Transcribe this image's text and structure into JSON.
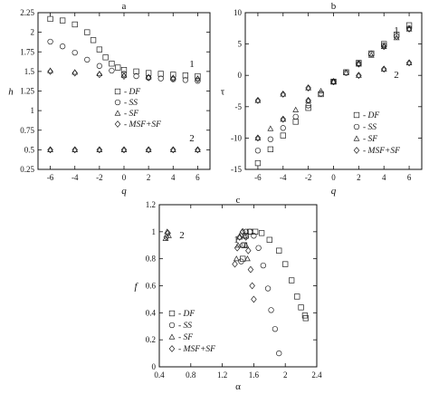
{
  "chart_data": [
    {
      "type": "scatter",
      "panel_title": "a",
      "xlabel": "q",
      "ylabel": "h",
      "xlim": [
        -7,
        7
      ],
      "ylim": [
        0.25,
        2.25
      ],
      "xticks": [
        "-6",
        "-4",
        "-2",
        "0",
        "2",
        "4",
        "6"
      ],
      "yticks": [
        "0.25",
        "0.5",
        "0.75",
        "1",
        "1.25",
        "1.5",
        "1.75",
        "2",
        "2.25"
      ],
      "series": [
        {
          "name": "- DF",
          "marker": "square",
          "points": [
            [
              -6,
              2.17
            ],
            [
              -5,
              2.15
            ],
            [
              -4,
              2.1
            ],
            [
              -3,
              2.0
            ],
            [
              -2.5,
              1.9
            ],
            [
              -2,
              1.78
            ],
            [
              -1.5,
              1.68
            ],
            [
              -1,
              1.6
            ],
            [
              -0.5,
              1.55
            ],
            [
              0,
              1.52
            ],
            [
              1,
              1.5
            ],
            [
              2,
              1.48
            ],
            [
              3,
              1.47
            ],
            [
              4,
              1.46
            ],
            [
              5,
              1.45
            ],
            [
              6,
              1.44
            ]
          ]
        },
        {
          "name": "- SS",
          "marker": "circle",
          "points": [
            [
              -6,
              1.88
            ],
            [
              -5,
              1.82
            ],
            [
              -4,
              1.74
            ],
            [
              -3,
              1.65
            ],
            [
              -2,
              1.57
            ],
            [
              -1,
              1.51
            ],
            [
              0,
              1.47
            ],
            [
              1,
              1.44
            ],
            [
              2,
              1.42
            ],
            [
              3,
              1.41
            ],
            [
              4,
              1.4
            ],
            [
              5,
              1.39
            ],
            [
              6,
              1.38
            ]
          ]
        },
        {
          "name": "- SF",
          "marker": "triangle",
          "points": [
            [
              -6,
              1.51
            ],
            [
              -4,
              1.49
            ],
            [
              -2,
              1.47
            ],
            [
              0,
              1.45
            ],
            [
              2,
              1.43
            ],
            [
              4,
              1.42
            ],
            [
              6,
              1.41
            ],
            [
              -6,
              0.5
            ],
            [
              -4,
              0.5
            ],
            [
              -2,
              0.5
            ],
            [
              0,
              0.5
            ],
            [
              2,
              0.5
            ],
            [
              4,
              0.5
            ],
            [
              6,
              0.5
            ]
          ]
        },
        {
          "name": "- MSF+SF",
          "marker": "diamond",
          "points": [
            [
              -6,
              1.5
            ],
            [
              -4,
              1.48
            ],
            [
              -2,
              1.46
            ],
            [
              0,
              1.44
            ],
            [
              2,
              1.42
            ],
            [
              4,
              1.41
            ],
            [
              6,
              1.4
            ],
            [
              -6,
              0.5
            ],
            [
              -4,
              0.5
            ],
            [
              -2,
              0.5
            ],
            [
              0,
              0.5
            ],
            [
              2,
              0.5
            ],
            [
              4,
              0.5
            ],
            [
              6,
              0.5
            ]
          ]
        }
      ],
      "annotations": [
        "1",
        "2"
      ],
      "legend": "lower-right"
    },
    {
      "type": "scatter",
      "panel_title": "b",
      "xlabel": "q",
      "ylabel": "τ",
      "xlim": [
        -7,
        7
      ],
      "ylim": [
        -15,
        10
      ],
      "xticks": [
        "-6",
        "-4",
        "-2",
        "0",
        "2",
        "4",
        "6"
      ],
      "yticks": [
        "-15",
        "-10",
        "-5",
        "0",
        "5",
        "10"
      ],
      "series": [
        {
          "name": "- DF",
          "marker": "square",
          "points": [
            [
              -6,
              -14
            ],
            [
              -5,
              -11.8
            ],
            [
              -4,
              -9.6
            ],
            [
              -3,
              -7.4
            ],
            [
              -2,
              -5.2
            ],
            [
              -1,
              -3.0
            ],
            [
              0,
              -1.0
            ],
            [
              1,
              0.5
            ],
            [
              2,
              2.0
            ],
            [
              3,
              3.5
            ],
            [
              4,
              5.0
            ],
            [
              5,
              6.5
            ],
            [
              6,
              8.0
            ]
          ]
        },
        {
          "name": "- SS",
          "marker": "circle",
          "points": [
            [
              -6,
              -12
            ],
            [
              -5,
              -10.2
            ],
            [
              -4,
              -8.4
            ],
            [
              -3,
              -6.6
            ],
            [
              -2,
              -4.8
            ],
            [
              -1,
              -2.9
            ],
            [
              0,
              -1.0
            ],
            [
              1,
              0.4
            ],
            [
              2,
              1.9
            ],
            [
              3,
              3.4
            ],
            [
              4,
              4.8
            ],
            [
              5,
              6.2
            ],
            [
              6,
              7.5
            ]
          ]
        },
        {
          "name": "- SF",
          "marker": "triangle",
          "points": [
            [
              -6,
              -10
            ],
            [
              -5,
              -8.5
            ],
            [
              -4,
              -7.0
            ],
            [
              -3,
              -5.5
            ],
            [
              -2,
              -4.0
            ],
            [
              -1,
              -2.5
            ],
            [
              0,
              -1.0
            ],
            [
              1,
              0.4
            ],
            [
              2,
              1.8
            ],
            [
              3,
              3.2
            ],
            [
              4,
              4.6
            ],
            [
              5,
              6.0
            ],
            [
              6,
              7.4
            ],
            [
              -6,
              -4
            ],
            [
              -4,
              -3
            ],
            [
              -2,
              -2
            ],
            [
              0,
              -1
            ],
            [
              2,
              0
            ],
            [
              4,
              1
            ],
            [
              6,
              2
            ]
          ]
        },
        {
          "name": "- MSF+SF",
          "marker": "diamond",
          "points": [
            [
              -6,
              -10
            ],
            [
              -4,
              -7
            ],
            [
              -2,
              -4
            ],
            [
              0,
              -1
            ],
            [
              2,
              1.8
            ],
            [
              4,
              4.6
            ],
            [
              6,
              7.4
            ],
            [
              -6,
              -4
            ],
            [
              -4,
              -3
            ],
            [
              -2,
              -2
            ],
            [
              0,
              -1
            ],
            [
              2,
              0
            ],
            [
              4,
              1
            ],
            [
              6,
              2
            ]
          ]
        }
      ],
      "annotations": [
        "1",
        "2"
      ],
      "legend": "lower-right"
    },
    {
      "type": "scatter",
      "panel_title": "c",
      "xlabel": "α",
      "ylabel": "f",
      "xlim": [
        0.4,
        2.4
      ],
      "ylim": [
        0,
        1.2
      ],
      "xticks": [
        "0.4",
        "0.8",
        "1.2",
        "1.6",
        "2",
        "2.4"
      ],
      "yticks": [
        "0",
        "0.2",
        "0.4",
        "0.6",
        "0.8",
        "1",
        "1.2"
      ],
      "series": [
        {
          "name": "- DF",
          "marker": "square",
          "points": [
            [
              1.46,
              0.8
            ],
            [
              1.48,
              0.9
            ],
            [
              1.5,
              0.97
            ],
            [
              1.55,
              1.0
            ],
            [
              1.62,
              1.0
            ],
            [
              1.7,
              0.99
            ],
            [
              1.8,
              0.94
            ],
            [
              1.92,
              0.86
            ],
            [
              2.0,
              0.76
            ],
            [
              2.08,
              0.64
            ],
            [
              2.15,
              0.52
            ],
            [
              2.2,
              0.44
            ],
            [
              2.25,
              0.38
            ],
            [
              2.26,
              0.36
            ]
          ]
        },
        {
          "name": "- SS",
          "marker": "circle",
          "points": [
            [
              1.44,
              0.78
            ],
            [
              1.46,
              0.9
            ],
            [
              1.5,
              1.0
            ],
            [
              1.55,
              1.0
            ],
            [
              1.6,
              0.97
            ],
            [
              1.66,
              0.88
            ],
            [
              1.72,
              0.75
            ],
            [
              1.78,
              0.58
            ],
            [
              1.82,
              0.42
            ],
            [
              1.87,
              0.28
            ],
            [
              1.92,
              0.1
            ]
          ]
        },
        {
          "name": "- SF",
          "marker": "triangle",
          "points": [
            [
              0.48,
              0.95
            ],
            [
              0.5,
              1.0
            ],
            [
              0.52,
              0.97
            ],
            [
              1.38,
              0.8
            ],
            [
              1.4,
              0.9
            ],
            [
              1.42,
              0.96
            ],
            [
              1.45,
              1.0
            ],
            [
              1.48,
              0.97
            ],
            [
              1.5,
              0.9
            ],
            [
              1.52,
              0.8
            ]
          ]
        },
        {
          "name": "- MSF+SF",
          "marker": "diamond",
          "points": [
            [
              0.49,
              0.96
            ],
            [
              0.51,
              0.99
            ],
            [
              1.36,
              0.76
            ],
            [
              1.39,
              0.88
            ],
            [
              1.42,
              0.96
            ],
            [
              1.46,
              1.0
            ],
            [
              1.5,
              0.96
            ],
            [
              1.53,
              0.86
            ],
            [
              1.56,
              0.72
            ],
            [
              1.58,
              0.6
            ],
            [
              1.6,
              0.5
            ]
          ]
        }
      ],
      "annotations": [
        "1",
        "2"
      ],
      "legend": "lower-left"
    }
  ]
}
